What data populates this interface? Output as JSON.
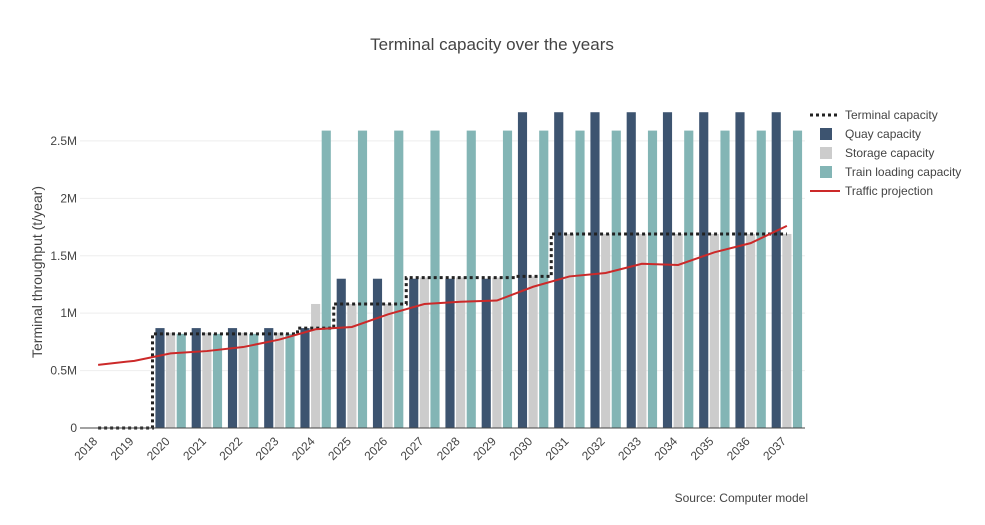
{
  "chart_data": {
    "type": "bar",
    "title": "Terminal capacity over the years",
    "ylabel": "Terminal throughput (t/year)",
    "xlabel": "",
    "source": "Source: Computer model",
    "ylim": [
      0,
      2900000
    ],
    "yticks": [
      0,
      500000,
      1000000,
      1500000,
      2000000,
      2500000
    ],
    "ytick_labels": [
      "0",
      "0.5M",
      "1M",
      "1.5M",
      "2M",
      "2.5M"
    ],
    "grid": true,
    "legend_position": "top-right",
    "categories": [
      "2018",
      "2019",
      "2020",
      "2021",
      "2022",
      "2023",
      "2024",
      "2025",
      "2026",
      "2027",
      "2028",
      "2029",
      "2030",
      "2031",
      "2032",
      "2033",
      "2034",
      "2035",
      "2036",
      "2037"
    ],
    "series": [
      {
        "name": "Terminal capacity",
        "kind": "line-step-dotted",
        "color": "#222222",
        "values": [
          0,
          0,
          820000,
          820000,
          820000,
          820000,
          870000,
          1080000,
          1080000,
          1310000,
          1310000,
          1310000,
          1320000,
          1690000,
          1690000,
          1690000,
          1690000,
          1690000,
          1690000,
          1690000
        ]
      },
      {
        "name": "Quay capacity",
        "kind": "bar",
        "color": "#3d5470",
        "values": [
          0,
          0,
          870000,
          870000,
          870000,
          870000,
          870000,
          1300000,
          1300000,
          1300000,
          1300000,
          1300000,
          2750000,
          2750000,
          2750000,
          2750000,
          2750000,
          2750000,
          2750000,
          2750000
        ]
      },
      {
        "name": "Storage capacity",
        "kind": "bar",
        "color": "#cccccc",
        "values": [
          0,
          0,
          830000,
          830000,
          830000,
          830000,
          1080000,
          1080000,
          1080000,
          1310000,
          1310000,
          1310000,
          1320000,
          1690000,
          1690000,
          1690000,
          1690000,
          1690000,
          1690000,
          1690000
        ]
      },
      {
        "name": "Train loading capacity",
        "kind": "bar",
        "color": "#83b5b5",
        "values": [
          0,
          0,
          820000,
          820000,
          820000,
          820000,
          2590000,
          2590000,
          2590000,
          2590000,
          2590000,
          2590000,
          2590000,
          2590000,
          2590000,
          2590000,
          2590000,
          2590000,
          2590000,
          2590000
        ]
      },
      {
        "name": "Traffic projection",
        "kind": "line",
        "color": "#cc2929",
        "values": [
          550000,
          585000,
          650000,
          670000,
          705000,
          770000,
          860000,
          880000,
          990000,
          1080000,
          1100000,
          1110000,
          1230000,
          1320000,
          1350000,
          1430000,
          1420000,
          1530000,
          1610000,
          1760000
        ]
      }
    ]
  }
}
